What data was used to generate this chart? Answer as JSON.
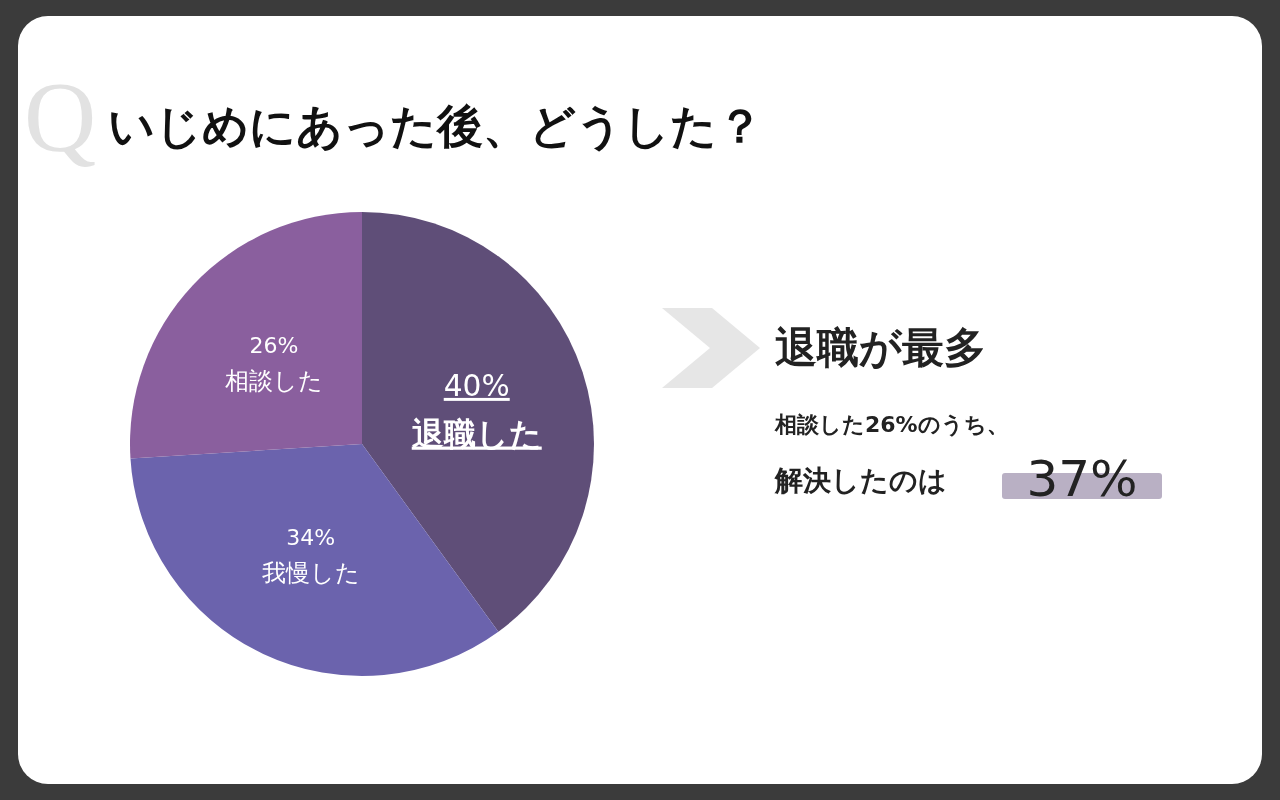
{
  "chart_data": {
    "type": "pie",
    "title": "いじめにあった後、どうした？",
    "categories": [
      "退職した",
      "我慢した",
      "相談した"
    ],
    "values": [
      40,
      34,
      26
    ],
    "value_labels": [
      "40%",
      "34%",
      "26%"
    ],
    "colors": [
      "#5f4e78",
      "#6b63ad",
      "#8a5f9e"
    ],
    "legend": false,
    "annotations": [
      "Q",
      "退職が最多",
      "相談した26%のうち、",
      "解決したのは",
      "37%"
    ]
  }
}
